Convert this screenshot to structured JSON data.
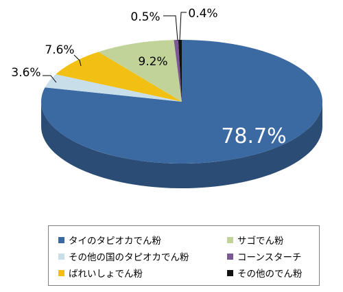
{
  "chart_data": {
    "type": "pie",
    "title": "",
    "slices": [
      {
        "label": "タイのタピオカでん粉",
        "value": 78.7,
        "value_label": "78.7%",
        "color": "#3b6aa3"
      },
      {
        "label": "その他の国のタピオカでん粉",
        "value": 3.6,
        "value_label": "3.6%",
        "color": "#c8dfea"
      },
      {
        "label": "ばれいしょでん粉",
        "value": 7.6,
        "value_label": "7.6%",
        "color": "#f2c012"
      },
      {
        "label": "サゴでん粉",
        "value": 9.2,
        "value_label": "9.2%",
        "color": "#c2d39a"
      },
      {
        "label": "コーンスターチ",
        "value": 0.5,
        "value_label": "0.5%",
        "color": "#7c5897"
      },
      {
        "label": "その他のでん粉",
        "value": 0.4,
        "value_label": "0.4%",
        "color": "#111111"
      }
    ],
    "legend_position": "bottom"
  }
}
